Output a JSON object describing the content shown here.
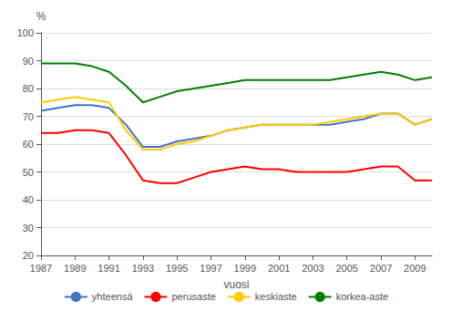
{
  "chart_data": {
    "type": "line",
    "x": [
      1987,
      1988,
      1989,
      1990,
      1991,
      1992,
      1993,
      1994,
      1995,
      1996,
      1997,
      1998,
      1999,
      2000,
      2001,
      2002,
      2003,
      2004,
      2005,
      2006,
      2007,
      2008,
      2009,
      2010
    ],
    "series": [
      {
        "name": "yhteensä",
        "color": "#4472C4",
        "values": [
          72,
          73,
          74,
          74,
          73,
          67,
          59,
          59,
          61,
          62,
          63,
          65,
          66,
          67,
          67,
          67,
          67,
          67,
          68,
          69,
          71,
          71,
          67,
          69
        ]
      },
      {
        "name": "perusaste",
        "color": "#FF0000",
        "values": [
          64,
          64,
          65,
          65,
          64,
          56,
          47,
          46,
          46,
          48,
          50,
          51,
          52,
          51,
          51,
          50,
          50,
          50,
          50,
          51,
          52,
          52,
          47,
          47
        ]
      },
      {
        "name": "keskiaste",
        "color": "#FFCC00",
        "values": [
          75,
          76,
          77,
          76,
          75,
          65,
          58,
          58,
          60,
          61,
          63,
          65,
          66,
          67,
          67,
          67,
          67,
          68,
          69,
          70,
          71,
          71,
          67,
          69
        ]
      },
      {
        "name": "korkea-aste",
        "color": "#008000",
        "values": [
          89,
          89,
          89,
          88,
          86,
          81,
          75,
          77,
          79,
          80,
          81,
          82,
          83,
          83,
          83,
          83,
          83,
          83,
          84,
          85,
          86,
          85,
          83,
          84
        ]
      }
    ],
    "xlabel": "vuosi",
    "ylabel": "%",
    "xlim": [
      1987,
      2010
    ],
    "xticks": [
      1987,
      1989,
      1991,
      1993,
      1995,
      1997,
      1999,
      2001,
      2003,
      2005,
      2007,
      2009
    ],
    "ylim": [
      20,
      100
    ],
    "yticks": [
      20,
      30,
      40,
      50,
      60,
      70,
      80,
      90,
      100
    ],
    "grid": true,
    "legend": "bottom"
  }
}
